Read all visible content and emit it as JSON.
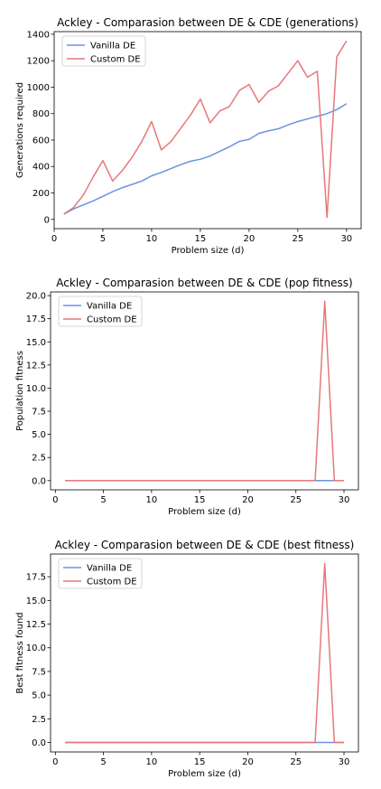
{
  "chart_data": [
    {
      "type": "line",
      "title": "Ackley - Comparasion between DE & CDE (generations)",
      "xlabel": "Problem size (d)",
      "ylabel": "Generations required",
      "xlim": [
        0,
        31.5
      ],
      "ylim": [
        -70,
        1420
      ],
      "xticks": [
        0,
        5,
        10,
        15,
        20,
        25,
        30
      ],
      "yticks": [
        0,
        200,
        400,
        600,
        800,
        1000,
        1200,
        1400
      ],
      "x": [
        1,
        2,
        3,
        4,
        5,
        6,
        7,
        8,
        9,
        10,
        11,
        12,
        13,
        14,
        15,
        16,
        17,
        18,
        19,
        20,
        21,
        22,
        23,
        24,
        25,
        26,
        27,
        28,
        29,
        30
      ],
      "legend_position": "upper-left",
      "series": [
        {
          "name": "Vanilla DE",
          "color": "#6b93e0",
          "values": [
            40,
            80,
            110,
            140,
            175,
            210,
            240,
            265,
            290,
            330,
            355,
            385,
            415,
            440,
            455,
            480,
            515,
            550,
            590,
            605,
            650,
            670,
            685,
            715,
            740,
            760,
            780,
            800,
            830,
            875
          ]
        },
        {
          "name": "Custom DE",
          "color": "#e7777a",
          "values": [
            40,
            90,
            185,
            320,
            445,
            290,
            370,
            470,
            590,
            740,
            525,
            590,
            690,
            790,
            910,
            730,
            820,
            855,
            975,
            1020,
            885,
            970,
            1010,
            1105,
            1200,
            1075,
            1120,
            15,
            1230,
            1350
          ]
        }
      ]
    },
    {
      "type": "line",
      "title": "Ackley - Comparasion between DE & CDE (pop fitness)",
      "xlabel": "Problem size (d)",
      "ylabel": "Population fitness",
      "xlim": [
        -0.5,
        31.5
      ],
      "ylim": [
        -1,
        20.4
      ],
      "xticks": [
        0,
        5,
        10,
        15,
        20,
        25,
        30
      ],
      "yticks": [
        0.0,
        2.5,
        5.0,
        7.5,
        10.0,
        12.5,
        15.0,
        17.5,
        20.0
      ],
      "ytick_labels": [
        "0.0",
        "2.5",
        "5.0",
        "7.5",
        "10.0",
        "12.5",
        "15.0",
        "17.5",
        "20.0"
      ],
      "x": [
        1,
        2,
        3,
        4,
        5,
        6,
        7,
        8,
        9,
        10,
        11,
        12,
        13,
        14,
        15,
        16,
        17,
        18,
        19,
        20,
        21,
        22,
        23,
        24,
        25,
        26,
        27,
        28,
        29,
        30
      ],
      "legend_position": "upper-left",
      "series": [
        {
          "name": "Vanilla DE",
          "color": "#6b93e0",
          "values": [
            0,
            0,
            0,
            0,
            0,
            0,
            0,
            0,
            0,
            0,
            0,
            0,
            0,
            0,
            0,
            0,
            0,
            0,
            0,
            0,
            0,
            0,
            0,
            0,
            0,
            0,
            0,
            0,
            0,
            0
          ]
        },
        {
          "name": "Custom DE",
          "color": "#e7777a",
          "values": [
            0,
            0,
            0,
            0,
            0,
            0,
            0,
            0,
            0,
            0,
            0,
            0,
            0,
            0,
            0,
            0,
            0,
            0,
            0,
            0,
            0,
            0,
            0,
            0,
            0,
            0,
            0,
            19.4,
            0,
            0
          ]
        }
      ]
    },
    {
      "type": "line",
      "title": "Ackley - Comparasion between DE & CDE (best fitness)",
      "xlabel": "Problem size (d)",
      "ylabel": "Best fitness found",
      "xlim": [
        -0.5,
        31.5
      ],
      "ylim": [
        -1,
        19.9
      ],
      "xticks": [
        0,
        5,
        10,
        15,
        20,
        25,
        30
      ],
      "yticks": [
        0.0,
        2.5,
        5.0,
        7.5,
        10.0,
        12.5,
        15.0,
        17.5
      ],
      "ytick_labels": [
        "0.0",
        "2.5",
        "5.0",
        "7.5",
        "10.0",
        "12.5",
        "15.0",
        "17.5"
      ],
      "x": [
        1,
        2,
        3,
        4,
        5,
        6,
        7,
        8,
        9,
        10,
        11,
        12,
        13,
        14,
        15,
        16,
        17,
        18,
        19,
        20,
        21,
        22,
        23,
        24,
        25,
        26,
        27,
        28,
        29,
        30
      ],
      "legend_position": "upper-left",
      "series": [
        {
          "name": "Vanilla DE",
          "color": "#6b93e0",
          "values": [
            0,
            0,
            0,
            0,
            0,
            0,
            0,
            0,
            0,
            0,
            0,
            0,
            0,
            0,
            0,
            0,
            0,
            0,
            0,
            0,
            0,
            0,
            0,
            0,
            0,
            0,
            0,
            0,
            0,
            0
          ]
        },
        {
          "name": "Custom DE",
          "color": "#e7777a",
          "values": [
            0,
            0,
            0,
            0,
            0,
            0,
            0,
            0,
            0,
            0,
            0,
            0,
            0,
            0,
            0,
            0,
            0,
            0,
            0,
            0,
            0,
            0,
            0,
            0,
            0,
            0,
            0,
            18.9,
            0,
            0
          ]
        }
      ]
    }
  ]
}
